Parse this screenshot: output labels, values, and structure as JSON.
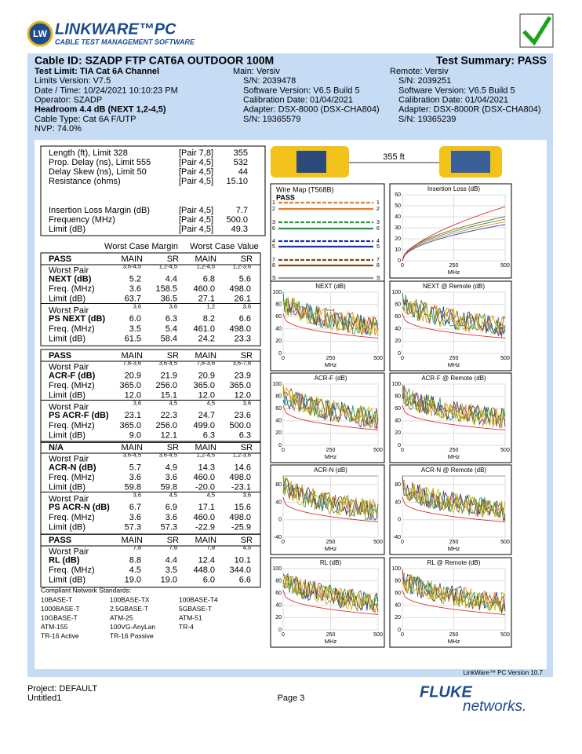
{
  "header": {
    "logo_mark": "LW",
    "logo_title": "LINKWARE™PC",
    "logo_subtitle": "CABLE TEST MANAGEMENT SOFTWARE"
  },
  "summary": {
    "cable_id": "Cable ID: SZADP FTP CAT6A OUTDOOR 100M",
    "test_summary": "Test Summary: PASS",
    "left": [
      "Test Limit: TIA Cat 6A Channel",
      "Limits Version: V7.5",
      "Date / Time: 10/24/2021  10:10:23 PM",
      "Operator: SZADP",
      "Headroom 4.4 dB (NEXT 1,2-4,5)",
      "Cable Type: Cat 6A F/UTP",
      "NVP: 74.0%"
    ],
    "main": [
      "Main: Versiv",
      "S/N: 2039478",
      "Software Version: V6.5 Build 5",
      "Calibration Date: 01/04/2021",
      "Adapter: DSX-8000 (DSX-CHA804)",
      "S/N: 19365579"
    ],
    "remote": [
      "Remote: Versiv",
      "S/N: 2039251",
      "Software Version: V6.5 Build 5",
      "Calibration Date: 01/04/2021",
      "Adapter: DSX-8000R (DSX-CHA804)",
      "S/N: 19365239"
    ]
  },
  "measurements": {
    "rows": [
      [
        "Length (ft), Limit 328",
        "[Pair 7,8]",
        "355"
      ],
      [
        "Prop. Delay (ns), Limit 555",
        "[Pair 4,5]",
        "532"
      ],
      [
        "Delay Skew (ns), Limit 50",
        "[Pair 4,5]",
        "44"
      ],
      [
        "Resistance (ohms)",
        "[Pair 4,5]",
        "15.10"
      ],
      [
        "Insertion Loss Margin (dB)",
        "[Pair 4,5]",
        "7.7"
      ],
      [
        "Frequency (MHz)",
        "[Pair 4,5]",
        "500.0"
      ],
      [
        "Limit (dB)",
        "[Pair 4,5]",
        "49.3"
      ]
    ],
    "margin_header": "Worst Case Margin",
    "value_header": "Worst Case Value"
  },
  "tables": [
    {
      "header": [
        "PASS",
        "MAIN",
        "SR",
        "MAIN",
        "SR"
      ],
      "rows": [
        [
          "Worst Pair",
          "3,6-4,5",
          "1,2-4,5",
          "1,2-4,5",
          "1,2-3,6"
        ],
        [
          "NEXT (dB)",
          "5.2",
          "4.4",
          "6.8",
          "5.6"
        ],
        [
          "Freq. (MHz)",
          "3.6",
          "158.5",
          "460.0",
          "498.0"
        ],
        [
          "Limit (dB)",
          "63.7",
          "36.5",
          "27.1",
          "26.1"
        ],
        [
          "Worst Pair",
          "3,6",
          "3,6",
          "1,2",
          "3,6"
        ],
        [
          "PS NEXT (dB)",
          "6.0",
          "6.3",
          "8.2",
          "6.6"
        ],
        [
          "Freq. (MHz)",
          "3.5",
          "5.4",
          "461.0",
          "498.0"
        ],
        [
          "Limit (dB)",
          "61.5",
          "58.4",
          "24.2",
          "23.3"
        ]
      ]
    },
    {
      "header": [
        "PASS",
        "MAIN",
        "SR",
        "MAIN",
        "SR"
      ],
      "rows": [
        [
          "Worst Pair",
          "7,8-3,6",
          "3,6-4,5",
          "7,8-3,6",
          "3,6-7,8"
        ],
        [
          "ACR-F (dB)",
          "20.9",
          "21.9",
          "20.9",
          "23.9"
        ],
        [
          "Freq. (MHz)",
          "365.0",
          "256.0",
          "365.0",
          "365.0"
        ],
        [
          "Limit (dB)",
          "12.0",
          "15.1",
          "12.0",
          "12.0"
        ],
        [
          "Worst Pair",
          "3,6",
          "4,5",
          "4,5",
          "3,6"
        ],
        [
          "PS ACR-F (dB)",
          "23.1",
          "22.3",
          "24.7",
          "23.6"
        ],
        [
          "Freq. (MHz)",
          "365.0",
          "256.0",
          "499.0",
          "500.0"
        ],
        [
          "Limit (dB)",
          "9.0",
          "12.1",
          "6.3",
          "6.3"
        ]
      ]
    },
    {
      "header": [
        "N/A",
        "MAIN",
        "SR",
        "MAIN",
        "SR"
      ],
      "rows": [
        [
          "Worst Pair",
          "3,6-4,5",
          "3,6-4,5",
          "1,2-4,5",
          "1,2-3,6"
        ],
        [
          "ACR-N (dB)",
          "5.7",
          "4.9",
          "14.3",
          "14.6"
        ],
        [
          "Freq. (MHz)",
          "3.6",
          "3.6",
          "460.0",
          "498.0"
        ],
        [
          "Limit (dB)",
          "59.8",
          "59.8",
          "-20.0",
          "-23.1"
        ],
        [
          "Worst Pair",
          "3,6",
          "4,5",
          "4,5",
          "3,6"
        ],
        [
          "PS ACR-N (dB)",
          "6.7",
          "6.9",
          "17.1",
          "15.6"
        ],
        [
          "Freq. (MHz)",
          "3.6",
          "3.6",
          "460.0",
          "498.0"
        ],
        [
          "Limit (dB)",
          "57.3",
          "57.3",
          "-22.9",
          "-25.9"
        ]
      ]
    },
    {
      "header": [
        "PASS",
        "MAIN",
        "SR",
        "MAIN",
        "SR"
      ],
      "rows": [
        [
          "Worst Pair",
          "7,8",
          "7,8",
          "7,8",
          "4,5"
        ],
        [
          "RL (dB)",
          "8.8",
          "4.4",
          "12.4",
          "10.1"
        ],
        [
          "Freq. (MHz)",
          "4.5",
          "3.5",
          "448.0",
          "344.0"
        ],
        [
          "Limit (dB)",
          "19.0",
          "19.0",
          "6.0",
          "6.6"
        ]
      ]
    }
  ],
  "standards": {
    "title": "Compliant Network Standards:",
    "items": [
      [
        "10BASE-T",
        "100BASE-TX",
        "100BASE-T4"
      ],
      [
        "1000BASE-T",
        "2.5GBASE-T",
        "5GBASE-T"
      ],
      [
        "10GBASE-T",
        "ATM-25",
        "ATM-51"
      ],
      [
        "ATM-155",
        "100VG-AnyLan",
        "TR-4"
      ],
      [
        "TR-16 Active",
        "TR-16 Passive"
      ]
    ]
  },
  "length_label": "355 ft",
  "wire_map": {
    "title": "Wire Map (T568B)",
    "status": "PASS",
    "pins": [
      "1",
      "2",
      "3",
      "6",
      "4",
      "5",
      "7",
      "8",
      "S"
    ]
  },
  "plots": [
    {
      "title": "Insertion Loss (dB)",
      "ylim": [
        0,
        60
      ],
      "yticks": [
        0,
        10,
        20,
        30,
        40,
        50,
        60
      ],
      "xlim": [
        0,
        500
      ],
      "xticks": [
        0,
        250,
        500
      ],
      "xlabel": "MHz"
    },
    {
      "title": "NEXT (dB)",
      "ylim": [
        0,
        100
      ],
      "yticks": [
        0,
        20,
        40,
        60,
        80,
        100
      ],
      "xlim": [
        0,
        500
      ],
      "xticks": [
        0,
        250,
        500
      ],
      "xlabel": "MHz"
    },
    {
      "title": "NEXT @ Remote (dB)",
      "ylim": [
        0,
        100
      ],
      "yticks": [
        0,
        20,
        40,
        60,
        80,
        100
      ],
      "xlim": [
        0,
        500
      ],
      "xticks": [
        0,
        250,
        500
      ],
      "xlabel": "MHz"
    },
    {
      "title": "ACR-F (dB)",
      "ylim": [
        0,
        100
      ],
      "yticks": [
        0,
        20,
        40,
        60,
        80,
        100
      ],
      "xlim": [
        0,
        500
      ],
      "xticks": [
        0,
        250,
        500
      ],
      "xlabel": "MHz"
    },
    {
      "title": "ACR-F @ Remote (dB)",
      "ylim": [
        0,
        100
      ],
      "yticks": [
        0,
        20,
        40,
        60,
        80,
        100
      ],
      "xlim": [
        0,
        500
      ],
      "xticks": [
        0,
        250,
        500
      ],
      "xlabel": "MHz"
    },
    {
      "title": "ACR-N (dB)",
      "ylim": [
        -40,
        100
      ],
      "yticks": [
        -40,
        0,
        40,
        80
      ],
      "xlim": [
        0,
        500
      ],
      "xticks": [
        0,
        250,
        500
      ],
      "xlabel": "MHz"
    },
    {
      "title": "ACR-N @ Remote (dB)",
      "ylim": [
        -40,
        100
      ],
      "yticks": [
        -40,
        0,
        40,
        80
      ],
      "xlim": [
        0,
        500
      ],
      "xticks": [
        0,
        250,
        500
      ],
      "xlabel": "MHz"
    },
    {
      "title": "RL (dB)",
      "ylim": [
        0,
        100
      ],
      "yticks": [
        0,
        20,
        40,
        60,
        80,
        100
      ],
      "xlim": [
        0,
        500
      ],
      "xticks": [
        0,
        250,
        500
      ],
      "xlabel": "MHz"
    },
    {
      "title": "RL @ Remote (dB)",
      "ylim": [
        0,
        100
      ],
      "yticks": [
        0,
        20,
        40,
        60,
        80,
        100
      ],
      "xlim": [
        0,
        500
      ],
      "xticks": [
        0,
        250,
        500
      ],
      "xlabel": "MHz"
    }
  ],
  "footer": {
    "version": "LinkWare™ PC Version 10.7",
    "project": "Project: DEFAULT",
    "file": "Untitled1",
    "page": "Page 3",
    "brand_top": "FLUKE",
    "brand_bottom": "networks."
  }
}
